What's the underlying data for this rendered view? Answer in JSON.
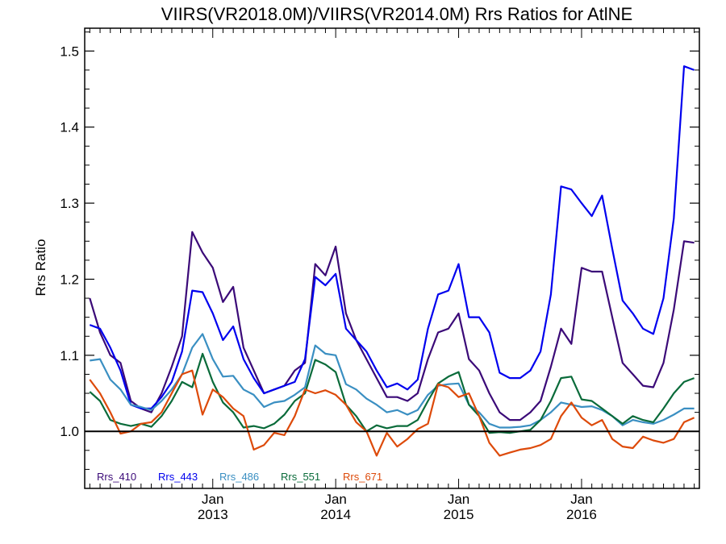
{
  "chart_data": {
    "type": "line",
    "title": "VIIRS(VR2018.0M)/VIIRS(VR2014.0M)  Rrs Ratios for AtlNE",
    "xlabel": "",
    "ylabel": "Rrs Ratio",
    "x_start": "2012-01",
    "x_step": "1 month",
    "xlim": [
      "2012-01",
      "2016-12"
    ],
    "ylim": [
      0.925,
      1.53
    ],
    "yticks": [
      "1.0",
      "1.1",
      "1.2",
      "1.3",
      "1.4",
      "1.5"
    ],
    "xticks": [
      {
        "month": "Jan",
        "year": "2013"
      },
      {
        "month": "Jan",
        "year": "2014"
      },
      {
        "month": "Jan",
        "year": "2015"
      },
      {
        "month": "Jan",
        "year": "2016"
      }
    ],
    "reference_line": 1.0,
    "grid": false,
    "legend_position": "bottom-left",
    "series": [
      {
        "name": "Rrs_410",
        "color": "#3b0a78",
        "values": [
          1.175,
          1.13,
          1.1,
          1.09,
          1.04,
          1.03,
          1.025,
          1.05,
          1.085,
          1.125,
          1.262,
          1.235,
          1.215,
          1.17,
          1.19,
          1.11,
          1.08,
          1.05,
          1.055,
          1.06,
          1.08,
          1.09,
          1.22,
          1.205,
          1.243,
          1.155,
          1.12,
          1.095,
          1.07,
          1.045,
          1.045,
          1.04,
          1.05,
          1.095,
          1.13,
          1.135,
          1.155,
          1.095,
          1.08,
          1.05,
          1.025,
          1.015,
          1.015,
          1.025,
          1.04,
          1.085,
          1.135,
          1.115,
          1.215,
          1.21,
          1.21,
          1.15,
          1.09,
          1.075,
          1.06,
          1.058,
          1.09,
          1.16,
          1.25,
          1.248
        ]
      },
      {
        "name": "Rrs_443",
        "color": "#0000ee",
        "values": [
          1.14,
          1.135,
          1.11,
          1.08,
          1.035,
          1.03,
          1.03,
          1.045,
          1.065,
          1.105,
          1.185,
          1.183,
          1.155,
          1.12,
          1.138,
          1.095,
          1.07,
          1.05,
          1.055,
          1.06,
          1.065,
          1.095,
          1.203,
          1.192,
          1.207,
          1.135,
          1.12,
          1.105,
          1.08,
          1.058,
          1.063,
          1.055,
          1.068,
          1.135,
          1.18,
          1.185,
          1.22,
          1.15,
          1.15,
          1.13,
          1.077,
          1.07,
          1.07,
          1.08,
          1.105,
          1.18,
          1.322,
          1.318,
          1.3,
          1.283,
          1.31,
          1.24,
          1.172,
          1.155,
          1.135,
          1.128,
          1.175,
          1.28,
          1.48,
          1.475
        ]
      },
      {
        "name": "Rrs_486",
        "color": "#3a8fc2",
        "values": [
          1.093,
          1.095,
          1.068,
          1.055,
          1.035,
          1.032,
          1.028,
          1.04,
          1.055,
          1.075,
          1.11,
          1.128,
          1.095,
          1.072,
          1.073,
          1.055,
          1.048,
          1.032,
          1.038,
          1.04,
          1.048,
          1.058,
          1.113,
          1.102,
          1.1,
          1.062,
          1.055,
          1.043,
          1.035,
          1.025,
          1.028,
          1.022,
          1.028,
          1.048,
          1.06,
          1.062,
          1.063,
          1.035,
          1.025,
          1.01,
          1.005,
          1.005,
          1.006,
          1.008,
          1.015,
          1.025,
          1.038,
          1.035,
          1.032,
          1.033,
          1.028,
          1.02,
          1.008,
          1.015,
          1.012,
          1.01,
          1.015,
          1.022,
          1.03,
          1.03
        ]
      },
      {
        "name": "Rrs_551",
        "color": "#0a6b3a",
        "values": [
          1.052,
          1.04,
          1.015,
          1.01,
          1.007,
          1.01,
          1.006,
          1.02,
          1.04,
          1.065,
          1.058,
          1.102,
          1.065,
          1.038,
          1.025,
          1.005,
          1.007,
          1.004,
          1.01,
          1.022,
          1.04,
          1.05,
          1.094,
          1.088,
          1.078,
          1.035,
          1.02,
          1.0,
          1.008,
          1.004,
          1.007,
          1.007,
          1.015,
          1.04,
          1.063,
          1.072,
          1.078,
          1.035,
          1.02,
          0.998,
          0.999,
          0.998,
          1.0,
          1.002,
          1.015,
          1.04,
          1.07,
          1.072,
          1.042,
          1.04,
          1.03,
          1.02,
          1.01,
          1.02,
          1.015,
          1.012,
          1.03,
          1.05,
          1.065,
          1.07
        ]
      },
      {
        "name": "Rrs_671",
        "color": "#dd4a0a",
        "values": [
          1.068,
          1.05,
          1.025,
          0.997,
          1.0,
          1.01,
          1.012,
          1.025,
          1.05,
          1.075,
          1.08,
          1.022,
          1.055,
          1.045,
          1.03,
          1.02,
          0.976,
          0.982,
          0.998,
          0.995,
          1.02,
          1.055,
          1.05,
          1.054,
          1.048,
          1.035,
          1.012,
          1.0,
          0.968,
          0.998,
          0.98,
          0.99,
          1.003,
          1.01,
          1.062,
          1.058,
          1.045,
          1.05,
          1.02,
          0.985,
          0.968,
          0.972,
          0.976,
          0.978,
          0.982,
          0.99,
          1.02,
          1.038,
          1.018,
          1.008,
          1.015,
          0.99,
          0.98,
          0.978,
          0.993,
          0.988,
          0.985,
          0.99,
          1.012,
          1.018
        ]
      }
    ]
  }
}
